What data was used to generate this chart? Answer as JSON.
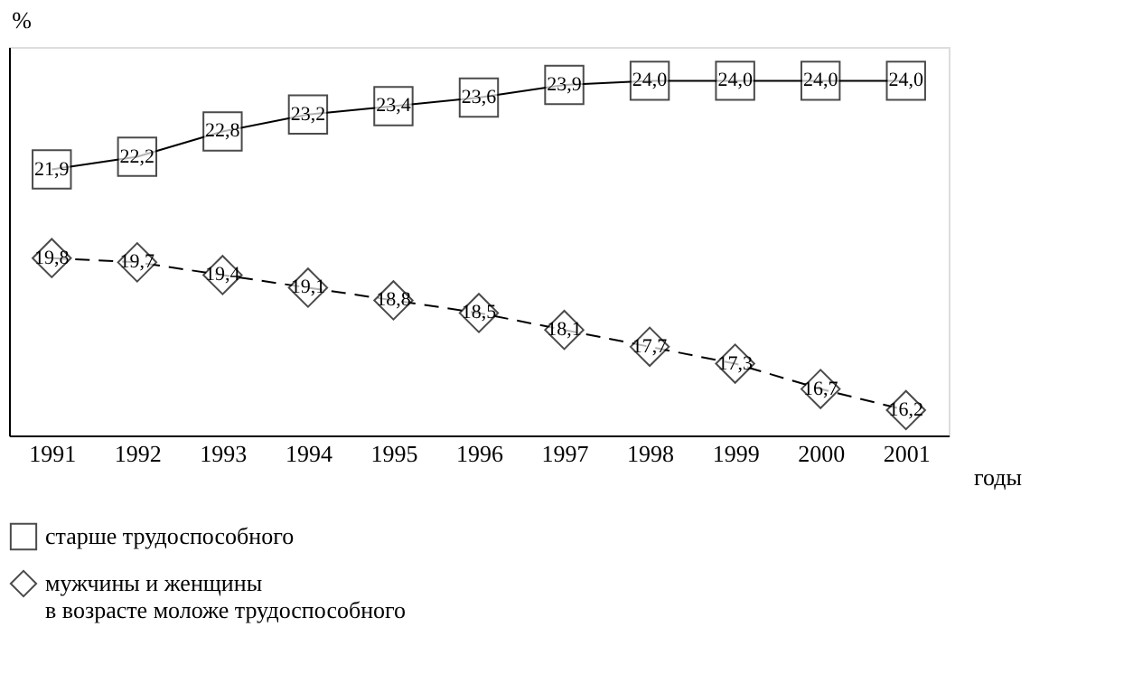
{
  "chart_data": {
    "type": "line",
    "ylabel": "%",
    "xlabel": "годы",
    "categories": [
      "1991",
      "1992",
      "1993",
      "1994",
      "1995",
      "1996",
      "1997",
      "1998",
      "1999",
      "2000",
      "2001"
    ],
    "series": [
      {
        "name": "старше трудоспособного",
        "color": "#000000",
        "line_style": "solid",
        "marker": "square",
        "values": [
          21.9,
          22.2,
          22.8,
          23.2,
          23.4,
          23.6,
          23.9,
          24.0,
          24.0,
          24.0,
          24.0
        ],
        "value_labels": [
          "21,9",
          "22,2",
          "22,8",
          "23,2",
          "23,4",
          "23,6",
          "23,9",
          "24,0",
          "24,0",
          "24,0",
          "24,0"
        ]
      },
      {
        "name": "мужчины и женщины\nв возрасте моложе трудоспособного",
        "color": "#000000",
        "line_style": "dashed",
        "marker": "diamond",
        "values": [
          19.8,
          19.7,
          19.4,
          19.1,
          18.8,
          18.5,
          18.1,
          17.7,
          17.3,
          16.7,
          16.2
        ],
        "value_labels": [
          "19,8",
          "19,7",
          "19,4",
          "19,1",
          "18,8",
          "18,5",
          "18,1",
          "17,7",
          "17,3",
          "16,7",
          "16,2"
        ]
      }
    ],
    "ylim": [
      15.6,
      24.8
    ],
    "tick_labels": "x",
    "grid": false,
    "legend": "bottom"
  }
}
